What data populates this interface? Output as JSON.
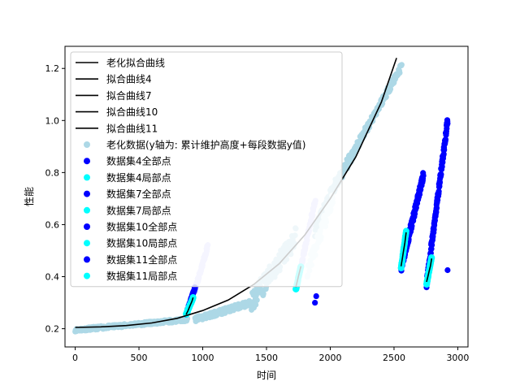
{
  "chart_data": {
    "type": "scatter",
    "title": "",
    "xlabel": "时间",
    "ylabel": "性能",
    "xlim": [
      -80,
      3080
    ],
    "ylim": [
      0.13,
      1.285
    ],
    "x_ticks": [
      0,
      500,
      1000,
      1500,
      2000,
      2500,
      3000
    ],
    "y_ticks": [
      0.2,
      0.4,
      0.6,
      0.8,
      1.0,
      1.2
    ],
    "y_tick_labels": [
      "0.2",
      "0.4",
      "0.6",
      "0.8",
      "1.0",
      "1.2"
    ],
    "legend_position": "upper-left",
    "colors": {
      "aging_data": "#add8e6",
      "aging_light": "#e0f3f7",
      "lavender": "#ccccff",
      "all_points": "#0000ff",
      "local_points": "#00ffff",
      "curve": "#000000"
    },
    "fit_curves": [
      {
        "name": "老化拟合曲线",
        "x": [
          0,
          200,
          400,
          600,
          800,
          1000,
          1200,
          1400,
          1600,
          1800,
          2000,
          2200,
          2400,
          2520
        ],
        "y": [
          0.205,
          0.207,
          0.212,
          0.222,
          0.24,
          0.27,
          0.31,
          0.37,
          0.45,
          0.56,
          0.7,
          0.86,
          1.07,
          1.24
        ]
      },
      {
        "name": "拟合曲线4",
        "x": [
          870,
          885,
          900,
          915,
          925
        ],
        "y": [
          0.255,
          0.27,
          0.288,
          0.305,
          0.32
        ]
      },
      {
        "name": "拟合曲线7",
        "x": [
          1730,
          1740,
          1750,
          1760,
          1770
        ],
        "y": [
          0.36,
          0.38,
          0.4,
          0.42,
          0.44
        ]
      },
      {
        "name": "拟合曲线10",
        "x": [
          2555,
          2565,
          2575,
          2585,
          2595
        ],
        "y": [
          0.44,
          0.47,
          0.5,
          0.53,
          0.57
        ]
      },
      {
        "name": "拟合曲线11",
        "x": [
          2755,
          2765,
          2775,
          2785,
          2795
        ],
        "y": [
          0.38,
          0.4,
          0.42,
          0.44,
          0.47
        ]
      }
    ],
    "aging_data": {
      "name": "老化数据(y轴为: 累计维护高度+每段数据y值)",
      "segments": [
        {
          "x0": 0,
          "x1": 880,
          "y0": 0.195,
          "y1": 0.235,
          "spread": 0.012
        },
        {
          "x0": 940,
          "x1": 1380,
          "y0": 0.235,
          "y1": 0.3,
          "spread": 0.02
        },
        {
          "x0": 1380,
          "x1": 1730,
          "y0": 0.3,
          "y1": 0.55,
          "spread": 0.08
        },
        {
          "x0": 1880,
          "x1": 2040,
          "y0": 0.58,
          "y1": 0.75,
          "spread": 0.05
        },
        {
          "x0": 2040,
          "x1": 2240,
          "y0": 0.75,
          "y1": 0.93,
          "spread": 0.04
        },
        {
          "x0": 2240,
          "x1": 2560,
          "y0": 0.93,
          "y1": 1.21,
          "spread": 0.03
        }
      ],
      "light_segment": {
        "x0": 1820,
        "x1": 2020,
        "y0": 0.42,
        "y1": 0.7,
        "spread": 0.06
      },
      "lavender_segments": [
        {
          "x0": 935,
          "x1": 1040,
          "y0": 0.34,
          "y1": 0.52,
          "spread": 0.02
        },
        {
          "x0": 1770,
          "x1": 1885,
          "y0": 0.44,
          "y1": 0.7,
          "spread": 0.025
        }
      ]
    },
    "series": [
      {
        "name": "数据集4全部点",
        "x0": 870,
        "x1": 940,
        "y0": 0.255,
        "y1": 0.36,
        "spread": 0.01
      },
      {
        "name": "数据集4局部点",
        "x0": 870,
        "x1": 925,
        "y0": 0.255,
        "y1": 0.32,
        "spread": 0.006
      },
      {
        "name": "数据集7全部点",
        "points": [
          [
            1880,
            0.3
          ],
          [
            1890,
            0.325
          ]
        ]
      },
      {
        "name": "数据集7局部点",
        "x0": 1730,
        "x1": 1770,
        "y0": 0.35,
        "y1": 0.44,
        "spread": 0.006
      },
      {
        "name": "数据集10全部点",
        "x0": 2555,
        "x1": 2730,
        "y0": 0.43,
        "y1": 0.79,
        "spread": 0.03
      },
      {
        "name": "数据集10局部点",
        "x0": 2555,
        "x1": 2595,
        "y0": 0.43,
        "y1": 0.575,
        "spread": 0.008
      },
      {
        "name": "数据集11全部点",
        "x0": 2755,
        "x1": 2920,
        "y0": 0.37,
        "y1": 1.0,
        "spread": 0.03,
        "extra": [
          [
            2920,
            0.425
          ]
        ]
      },
      {
        "name": "数据集11局部点",
        "x0": 2755,
        "x1": 2795,
        "y0": 0.37,
        "y1": 0.475,
        "spread": 0.007
      }
    ]
  }
}
